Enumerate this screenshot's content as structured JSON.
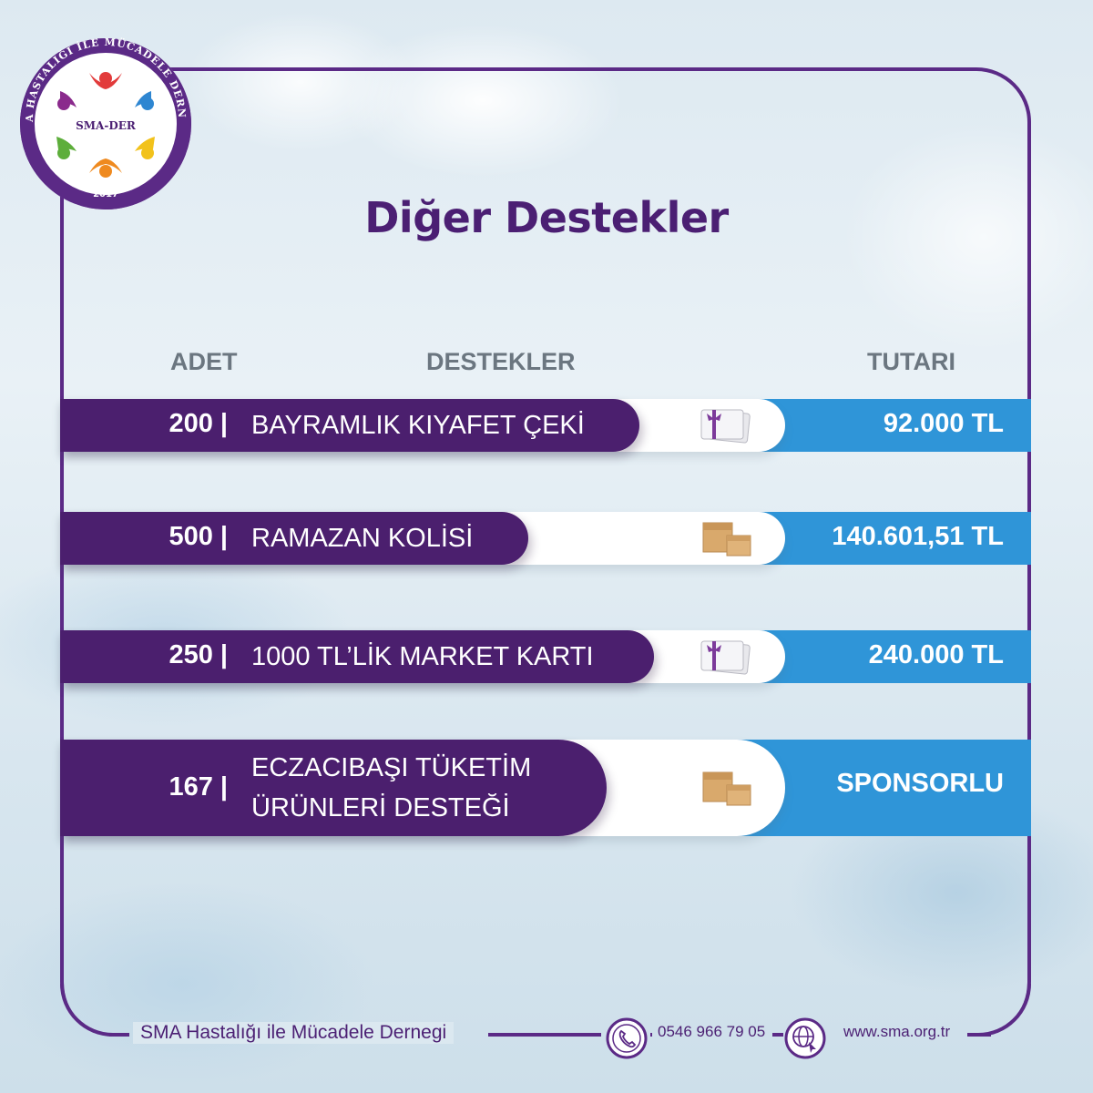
{
  "logo": {
    "org_ring_text": "SMA HASTALIĞI İLE MÜCADELE DERNEĞİ",
    "center_text": "SMA-DER",
    "year": "2017"
  },
  "title": "Diğer Destekler",
  "columns": {
    "qty": "ADET",
    "support": "DESTEKLER",
    "amount": "TUTARI"
  },
  "rows": [
    {
      "qty": "200 |",
      "label": "BAYRAMLIK KIYAFET ÇEKİ",
      "icon": "gift-card-icon",
      "amount": "92.000 TL"
    },
    {
      "qty": "500 |",
      "label": "RAMAZAN KOLİSİ",
      "icon": "cardboard-box-icon",
      "amount": "140.601,51 TL"
    },
    {
      "qty": "250 |",
      "label": "1000 TL’LİK MARKET KARTI",
      "icon": "gift-card-icon",
      "amount": "240.000 TL"
    },
    {
      "qty": "167 |",
      "label_line1": "ECZACIBAŞI TÜKETİM",
      "label_line2": "ÜRÜNLERİ DESTEĞİ",
      "icon": "cardboard-box-icon",
      "amount": "SPONSORLU"
    }
  ],
  "footer": {
    "org_name": "SMA Hastalığı ile Mücadele Dernegi",
    "phone": "0546 966 79 05",
    "website": "www.sma.org.tr",
    "phone_icon": "phone-icon",
    "web_icon": "globe-icon"
  },
  "colors": {
    "purple": "#4b1f6e",
    "blue": "#2f95d8",
    "frame": "#5b2a86"
  }
}
